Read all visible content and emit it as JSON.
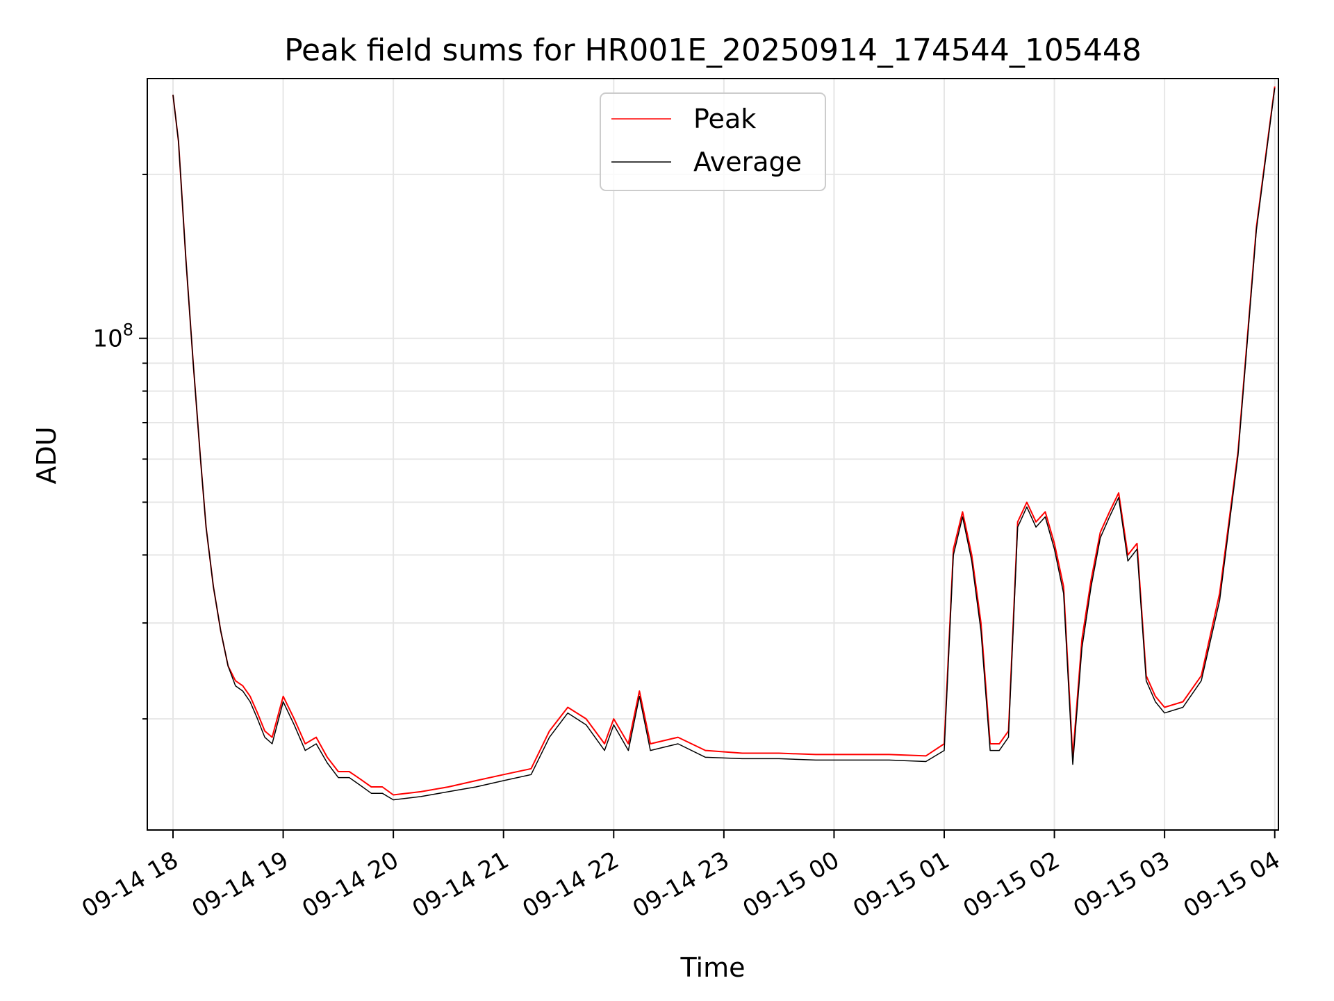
{
  "chart_data": {
    "type": "line",
    "title": "Peak field sums for HR001E_20250914_174544_105448",
    "xlabel": "Time",
    "ylabel": "ADU",
    "y_scale": "log",
    "ylim": [
      12500000,
      300000000
    ],
    "xlim": [
      "2025-09-14 17:46",
      "2025-09-15 04:02"
    ],
    "x_ticks": [
      "09-14 18",
      "09-14 19",
      "09-14 20",
      "09-14 21",
      "09-14 22",
      "09-14 23",
      "09-15 00",
      "09-15 01",
      "09-15 02",
      "09-15 03",
      "09-15 04"
    ],
    "y_ticks": [
      {
        "value": 100000000,
        "base": "10",
        "exp": "8"
      }
    ],
    "grid": true,
    "legend_position": "upper center",
    "colors": {
      "Peak": "#ff0000",
      "Average": "#000000"
    },
    "series": [
      {
        "name": "Peak",
        "x": [
          "2025-09-14 18:00",
          "2025-09-14 18:03",
          "2025-09-14 18:07",
          "2025-09-14 18:11",
          "2025-09-14 18:15",
          "2025-09-14 18:18",
          "2025-09-14 18:22",
          "2025-09-14 18:26",
          "2025-09-14 18:30",
          "2025-09-14 18:34",
          "2025-09-14 18:38",
          "2025-09-14 18:42",
          "2025-09-14 18:46",
          "2025-09-14 18:50",
          "2025-09-14 18:54",
          "2025-09-14 19:00",
          "2025-09-14 19:06",
          "2025-09-14 19:12",
          "2025-09-14 19:18",
          "2025-09-14 19:24",
          "2025-09-14 19:30",
          "2025-09-14 19:36",
          "2025-09-14 19:42",
          "2025-09-14 19:48",
          "2025-09-14 19:54",
          "2025-09-14 20:00",
          "2025-09-14 20:15",
          "2025-09-14 20:30",
          "2025-09-14 20:45",
          "2025-09-14 21:00",
          "2025-09-14 21:15",
          "2025-09-14 21:25",
          "2025-09-14 21:35",
          "2025-09-14 21:45",
          "2025-09-14 21:55",
          "2025-09-14 22:00",
          "2025-09-14 22:08",
          "2025-09-14 22:14",
          "2025-09-14 22:20",
          "2025-09-14 22:35",
          "2025-09-14 22:50",
          "2025-09-14 23:10",
          "2025-09-14 23:30",
          "2025-09-14 23:50",
          "2025-09-15 00:10",
          "2025-09-15 00:30",
          "2025-09-15 00:50",
          "2025-09-15 01:00",
          "2025-09-15 01:05",
          "2025-09-15 01:10",
          "2025-09-15 01:15",
          "2025-09-15 01:20",
          "2025-09-15 01:25",
          "2025-09-15 01:30",
          "2025-09-15 01:35",
          "2025-09-15 01:40",
          "2025-09-15 01:45",
          "2025-09-15 01:50",
          "2025-09-15 01:55",
          "2025-09-15 02:00",
          "2025-09-15 02:05",
          "2025-09-15 02:10",
          "2025-09-15 02:15",
          "2025-09-15 02:20",
          "2025-09-15 02:25",
          "2025-09-15 02:30",
          "2025-09-15 02:35",
          "2025-09-15 02:40",
          "2025-09-15 02:45",
          "2025-09-15 02:50",
          "2025-09-15 02:55",
          "2025-09-15 03:00",
          "2025-09-15 03:10",
          "2025-09-15 03:20",
          "2025-09-15 03:30",
          "2025-09-15 03:40",
          "2025-09-15 03:50",
          "2025-09-15 04:00"
        ],
        "values": [
          280000000,
          230000000,
          140000000,
          90000000,
          60000000,
          45000000,
          35000000,
          29000000,
          25000000,
          23500000,
          23000000,
          22000000,
          20500000,
          19000000,
          18500000,
          22000000,
          20000000,
          18000000,
          18500000,
          17000000,
          16000000,
          16000000,
          15500000,
          15000000,
          15000000,
          14500000,
          14700000,
          15000000,
          15400000,
          15800000,
          16200000,
          19000000,
          21000000,
          20000000,
          18000000,
          20000000,
          18000000,
          22500000,
          18000000,
          18500000,
          17500000,
          17300000,
          17300000,
          17200000,
          17200000,
          17200000,
          17100000,
          18000000,
          41000000,
          48000000,
          40000000,
          30000000,
          18000000,
          18000000,
          19000000,
          46000000,
          50000000,
          46000000,
          48000000,
          42000000,
          35000000,
          17000000,
          28000000,
          36000000,
          44000000,
          48000000,
          52000000,
          40000000,
          42000000,
          24000000,
          22000000,
          21000000,
          21500000,
          24000000,
          34000000,
          62000000,
          160000000,
          290000000
        ]
      },
      {
        "name": "Average",
        "x": [
          "2025-09-14 18:00",
          "2025-09-14 18:03",
          "2025-09-14 18:07",
          "2025-09-14 18:11",
          "2025-09-14 18:15",
          "2025-09-14 18:18",
          "2025-09-14 18:22",
          "2025-09-14 18:26",
          "2025-09-14 18:30",
          "2025-09-14 18:34",
          "2025-09-14 18:38",
          "2025-09-14 18:42",
          "2025-09-14 18:46",
          "2025-09-14 18:50",
          "2025-09-14 18:54",
          "2025-09-14 19:00",
          "2025-09-14 19:06",
          "2025-09-14 19:12",
          "2025-09-14 19:18",
          "2025-09-14 19:24",
          "2025-09-14 19:30",
          "2025-09-14 19:36",
          "2025-09-14 19:42",
          "2025-09-14 19:48",
          "2025-09-14 19:54",
          "2025-09-14 20:00",
          "2025-09-14 20:15",
          "2025-09-14 20:30",
          "2025-09-14 20:45",
          "2025-09-14 21:00",
          "2025-09-14 21:15",
          "2025-09-14 21:25",
          "2025-09-14 21:35",
          "2025-09-14 21:45",
          "2025-09-14 21:55",
          "2025-09-14 22:00",
          "2025-09-14 22:08",
          "2025-09-14 22:14",
          "2025-09-14 22:20",
          "2025-09-14 22:35",
          "2025-09-14 22:50",
          "2025-09-14 23:10",
          "2025-09-14 23:30",
          "2025-09-14 23:50",
          "2025-09-15 00:10",
          "2025-09-15 00:30",
          "2025-09-15 00:50",
          "2025-09-15 01:00",
          "2025-09-15 01:05",
          "2025-09-15 01:10",
          "2025-09-15 01:15",
          "2025-09-15 01:20",
          "2025-09-15 01:25",
          "2025-09-15 01:30",
          "2025-09-15 01:35",
          "2025-09-15 01:40",
          "2025-09-15 01:45",
          "2025-09-15 01:50",
          "2025-09-15 01:55",
          "2025-09-15 02:00",
          "2025-09-15 02:05",
          "2025-09-15 02:10",
          "2025-09-15 02:15",
          "2025-09-15 02:20",
          "2025-09-15 02:25",
          "2025-09-15 02:30",
          "2025-09-15 02:35",
          "2025-09-15 02:40",
          "2025-09-15 02:45",
          "2025-09-15 02:50",
          "2025-09-15 02:55",
          "2025-09-15 03:00",
          "2025-09-15 03:10",
          "2025-09-15 03:20",
          "2025-09-15 03:30",
          "2025-09-15 03:40",
          "2025-09-15 03:50",
          "2025-09-15 04:00"
        ],
        "values": [
          280000000,
          230000000,
          140000000,
          90000000,
          60000000,
          45000000,
          35000000,
          29000000,
          25000000,
          23000000,
          22500000,
          21500000,
          20000000,
          18500000,
          18000000,
          21500000,
          19500000,
          17500000,
          18000000,
          16600000,
          15600000,
          15600000,
          15100000,
          14600000,
          14600000,
          14200000,
          14400000,
          14700000,
          15000000,
          15400000,
          15800000,
          18500000,
          20500000,
          19500000,
          17500000,
          19500000,
          17500000,
          22000000,
          17500000,
          18000000,
          17000000,
          16900000,
          16900000,
          16800000,
          16800000,
          16800000,
          16700000,
          17500000,
          40000000,
          47000000,
          39000000,
          29000000,
          17500000,
          17500000,
          18500000,
          45000000,
          49000000,
          45000000,
          47000000,
          41000000,
          34000000,
          16500000,
          27000000,
          35000000,
          43000000,
          47000000,
          51000000,
          39000000,
          41000000,
          23500000,
          21500000,
          20500000,
          21000000,
          23500000,
          33000000,
          61000000,
          158000000,
          288000000
        ]
      }
    ]
  }
}
